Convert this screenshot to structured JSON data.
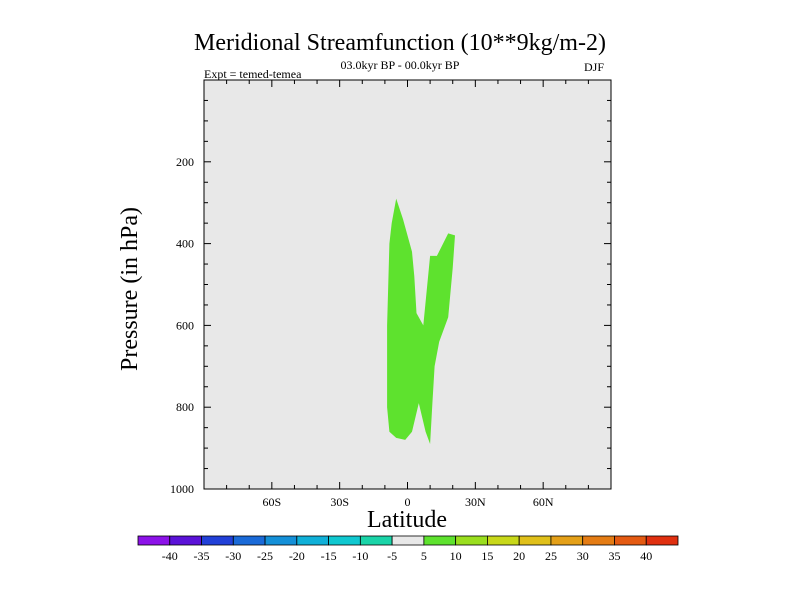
{
  "chart_data": {
    "type": "contour",
    "title": "Meridional Streamfunction (10**9kg/m-2)",
    "subtitle": "03.0kyr BP - 00.0kyr BP",
    "experiment_label": "Expt = temed-temea",
    "season": "DJF",
    "xlabel": "Latitude",
    "ylabel": "Pressure (in hPa)",
    "xlim": [
      -90,
      90
    ],
    "ylim": [
      1000,
      0
    ],
    "x_ticks": [
      {
        "value": -60,
        "label": "60S"
      },
      {
        "value": -30,
        "label": "30S"
      },
      {
        "value": 0,
        "label": "0"
      },
      {
        "value": 30,
        "label": "30N"
      },
      {
        "value": 60,
        "label": "60N"
      }
    ],
    "y_ticks": [
      {
        "value": 200,
        "label": "200"
      },
      {
        "value": 400,
        "label": "400"
      },
      {
        "value": 600,
        "label": "600"
      },
      {
        "value": 800,
        "label": "800"
      },
      {
        "value": 1000,
        "label": "1000"
      }
    ],
    "background_color": "#e8e8e8",
    "filled_regions": [
      {
        "level": "5 to 10",
        "color": "#5ee22e",
        "points": [
          [
            -5,
            290
          ],
          [
            -2,
            340
          ],
          [
            2,
            420
          ],
          [
            3,
            480
          ],
          [
            4,
            570
          ],
          [
            7,
            600
          ],
          [
            10,
            430
          ],
          [
            13,
            430
          ],
          [
            18,
            375
          ],
          [
            21,
            380
          ],
          [
            20,
            460
          ],
          [
            18,
            580
          ],
          [
            14,
            640
          ],
          [
            12,
            700
          ],
          [
            11,
            790
          ],
          [
            10,
            890
          ],
          [
            8,
            860
          ],
          [
            5,
            790
          ],
          [
            2,
            860
          ],
          [
            -1,
            880
          ],
          [
            -5,
            875
          ],
          [
            -8,
            860
          ],
          [
            -9,
            800
          ],
          [
            -9,
            600
          ],
          [
            -8,
            400
          ],
          [
            -7,
            350
          ]
        ]
      }
    ],
    "colorbar": {
      "levels": [
        -40,
        -35,
        -30,
        -25,
        -20,
        -15,
        -10,
        -5,
        5,
        10,
        15,
        20,
        25,
        30,
        35,
        40
      ],
      "labels": [
        "-40",
        "-35",
        "-30",
        "-25",
        "-20",
        "-15",
        "-10",
        "-5",
        "5",
        "10",
        "15",
        "20",
        "25",
        "30",
        "35",
        "40"
      ],
      "colors": [
        "#8c12e8",
        "#5b12d8",
        "#2140d8",
        "#1a6ad8",
        "#1490d8",
        "#10b0d8",
        "#10c8d0",
        "#1ad4a8",
        "#e8e8e8",
        "#5ee22e",
        "#9ade1e",
        "#c8d81a",
        "#e0c01a",
        "#e4a018",
        "#e47c14",
        "#e45a12",
        "#e03010"
      ]
    }
  }
}
